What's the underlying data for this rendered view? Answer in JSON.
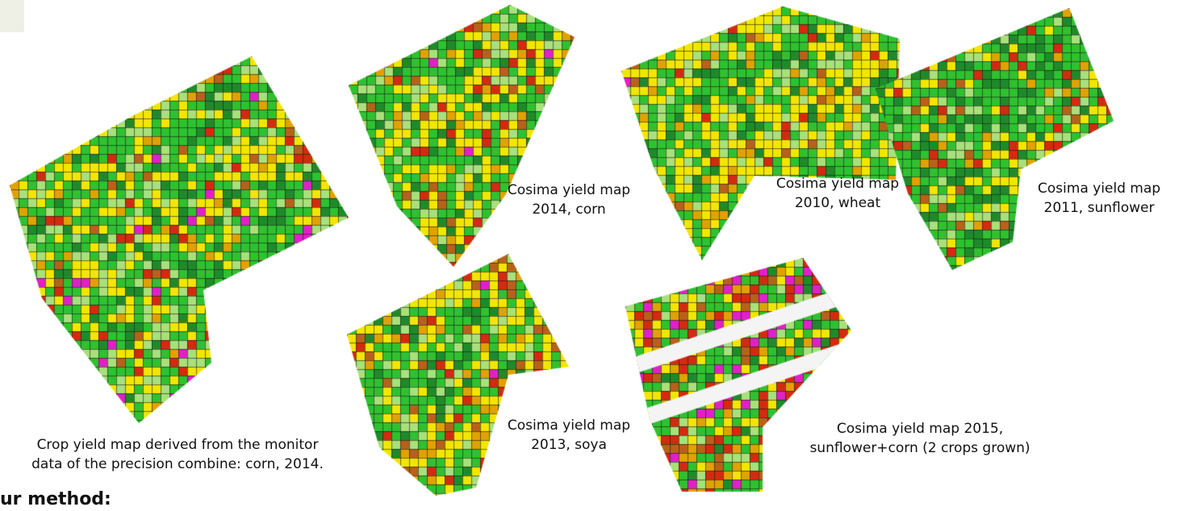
{
  "maps": [
    {
      "id": "monitor-corn-2014",
      "caption_lines": [
        "Crop yield map derived from the monitor",
        "data of the precision combine: corn, 2014."
      ]
    },
    {
      "id": "cosima-2014-corn",
      "caption_lines": [
        "Cosima yield map",
        "2014, corn"
      ]
    },
    {
      "id": "cosima-2010-wheat",
      "caption_lines": [
        "Cosima yield map",
        "2010, wheat"
      ]
    },
    {
      "id": "cosima-2011-sunflower",
      "caption_lines": [
        "Cosima yield map",
        "2011, sunflower"
      ]
    },
    {
      "id": "cosima-2013-soya",
      "caption_lines": [
        "Cosima yield map",
        "2013, soya"
      ]
    },
    {
      "id": "cosima-2015-sunflower-corn",
      "caption_lines": [
        "Cosima yield map 2015,",
        "sunflower+corn (2 crops grown)"
      ]
    }
  ],
  "section_heading": "ur method:",
  "palette": {
    "dark_green": "#1f8a2a",
    "green": "#2fc12f",
    "light_green": "#a8e07a",
    "yellow": "#f2e600",
    "orange": "#e0a200",
    "brown": "#b8611a",
    "red": "#d42a10",
    "magenta": "#e020c8",
    "teal": "#2b8c6a",
    "grid": "#1a1a1a"
  }
}
